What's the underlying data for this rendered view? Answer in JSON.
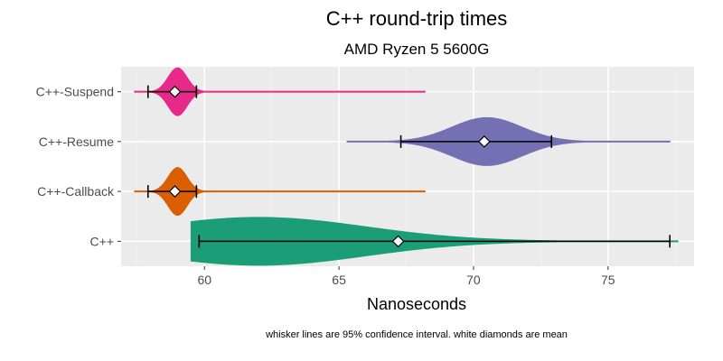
{
  "chart_data": {
    "type": "violin",
    "title": "C++  round-trip times",
    "subtitle": "AMD Ryzen 5 5600G",
    "xlabel": "Nanoseconds",
    "ylabel": "",
    "caption": "whisker lines are 95% confidence interval. white diamonds are mean",
    "xlim": [
      56.9,
      78.2
    ],
    "x_ticks": [
      60,
      65,
      70,
      75
    ],
    "x_tick_labels": [
      "60",
      "65",
      "70",
      "75"
    ],
    "grid": true,
    "categories": [
      "C++-Suspend",
      "C++-Resume",
      "C++-Callback",
      "C++"
    ],
    "series": [
      {
        "name": "C++-Suspend",
        "color": "#e7298a",
        "min": 57.4,
        "max": 68.2,
        "peak": 59.0,
        "spread": 0.35,
        "ci_low": 57.9,
        "ci_high": 59.7,
        "mean": 58.9
      },
      {
        "name": "C++-Resume",
        "color": "#7570b3",
        "min": 65.3,
        "max": 77.3,
        "peak": 70.5,
        "spread": 1.3,
        "ci_low": 67.3,
        "ci_high": 72.9,
        "mean": 70.4
      },
      {
        "name": "C++-Callback",
        "color": "#d95f02",
        "min": 57.4,
        "max": 68.2,
        "peak": 59.0,
        "spread": 0.35,
        "ci_low": 57.9,
        "ci_high": 59.7,
        "mean": 58.9
      },
      {
        "name": "C++",
        "color": "#1b9e77",
        "min": 59.5,
        "max": 77.6,
        "peak": 62.0,
        "spread": 4.0,
        "ci_low": 59.8,
        "ci_high": 77.3,
        "mean": 67.2
      }
    ]
  }
}
